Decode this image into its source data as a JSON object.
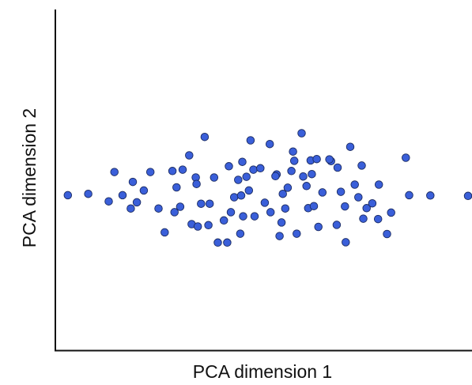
{
  "chart_data": {
    "type": "scatter",
    "xlabel": "PCA dimension 1",
    "ylabel": "PCA dimension 2",
    "xlim": [
      0,
      100
    ],
    "ylim": [
      0,
      100
    ],
    "grid": false,
    "point_color": "#3a5fd9",
    "point_stroke": "#1a2a60",
    "points": [
      [
        1.5,
        45.5
      ],
      [
        6.5,
        45.9
      ],
      [
        11.5,
        43.7
      ],
      [
        12.9,
        52.3
      ],
      [
        14.9,
        45.5
      ],
      [
        16.9,
        41.6
      ],
      [
        17.4,
        49.4
      ],
      [
        18.4,
        43.4
      ],
      [
        20.1,
        46.9
      ],
      [
        21.7,
        52.3
      ],
      [
        23.7,
        41.6
      ],
      [
        25.2,
        34.6
      ],
      [
        27.1,
        52.6
      ],
      [
        27.6,
        40.5
      ],
      [
        28.1,
        47.8
      ],
      [
        29.0,
        42.1
      ],
      [
        31.2,
        57.2
      ],
      [
        31.8,
        37.0
      ],
      [
        32.8,
        50.7
      ],
      [
        33.0,
        48.8
      ],
      [
        33.3,
        36.3
      ],
      [
        34.1,
        43.0
      ],
      [
        35.0,
        62.6
      ],
      [
        35.9,
        36.7
      ],
      [
        36.2,
        43.0
      ],
      [
        37.3,
        50.7
      ],
      [
        38.2,
        31.6
      ],
      [
        39.7,
        38.1
      ],
      [
        40.5,
        31.6
      ],
      [
        40.9,
        54.0
      ],
      [
        41.4,
        40.5
      ],
      [
        42.2,
        44.9
      ],
      [
        43.2,
        50.0
      ],
      [
        43.7,
        34.2
      ],
      [
        44.2,
        55.3
      ],
      [
        44.4,
        39.3
      ],
      [
        45.2,
        50.9
      ],
      [
        45.8,
        46.9
      ],
      [
        46.2,
        61.6
      ],
      [
        46.9,
        53.0
      ],
      [
        47.2,
        39.3
      ],
      [
        48.6,
        53.4
      ],
      [
        49.7,
        43.3
      ],
      [
        50.9,
        60.5
      ],
      [
        51.1,
        40.5
      ],
      [
        52.6,
        51.6
      ],
      [
        53.3,
        33.5
      ],
      [
        53.8,
        37.5
      ],
      [
        54.1,
        45.9
      ],
      [
        54.7,
        41.6
      ],
      [
        55.3,
        47.7
      ],
      [
        56.2,
        52.6
      ],
      [
        56.6,
        58.3
      ],
      [
        56.9,
        55.6
      ],
      [
        57.5,
        34.2
      ],
      [
        58.7,
        63.7
      ],
      [
        59.1,
        51.0
      ],
      [
        59.9,
        48.2
      ],
      [
        60.3,
        41.7
      ],
      [
        60.9,
        55.7
      ],
      [
        61.2,
        51.7
      ],
      [
        61.7,
        42.3
      ],
      [
        62.4,
        56.1
      ],
      [
        62.8,
        36.2
      ],
      [
        63.8,
        46.3
      ],
      [
        65.9,
        55.5
      ],
      [
        67.3,
        36.8
      ],
      [
        67.5,
        53.6
      ],
      [
        68.3,
        46.5
      ],
      [
        69.3,
        42.2
      ],
      [
        69.5,
        31.7
      ],
      [
        70.6,
        59.7
      ],
      [
        71.7,
        48.6
      ],
      [
        72.6,
        44.9
      ],
      [
        73.4,
        54.2
      ],
      [
        73.8,
        38.6
      ],
      [
        74.6,
        41.7
      ],
      [
        76.0,
        43.1
      ],
      [
        77.4,
        38.5
      ],
      [
        77.6,
        48.6
      ],
      [
        79.6,
        34.1
      ],
      [
        80.6,
        40.4
      ],
      [
        84.2,
        56.5
      ],
      [
        85.0,
        45.5
      ],
      [
        90.2,
        45.4
      ],
      [
        100.2,
        45.3
      ],
      [
        65.5,
        56.0
      ],
      [
        52.3,
        51.1
      ],
      [
        43.9,
        45.4
      ],
      [
        29.6,
        53.0
      ]
    ]
  }
}
